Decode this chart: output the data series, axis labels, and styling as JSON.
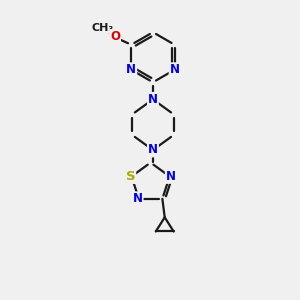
{
  "bg_color": "#f0f0f0",
  "bond_color": "#1a1a1a",
  "nitrogen_color": "#0000ee",
  "oxygen_color": "#dd0000",
  "sulfur_color": "#aaaa00",
  "line_width": 1.6,
  "font_size": 8.5,
  "fig_size": [
    3.0,
    3.0
  ],
  "dpi": 100,
  "xlim": [
    0,
    10
  ],
  "ylim": [
    0,
    10
  ]
}
